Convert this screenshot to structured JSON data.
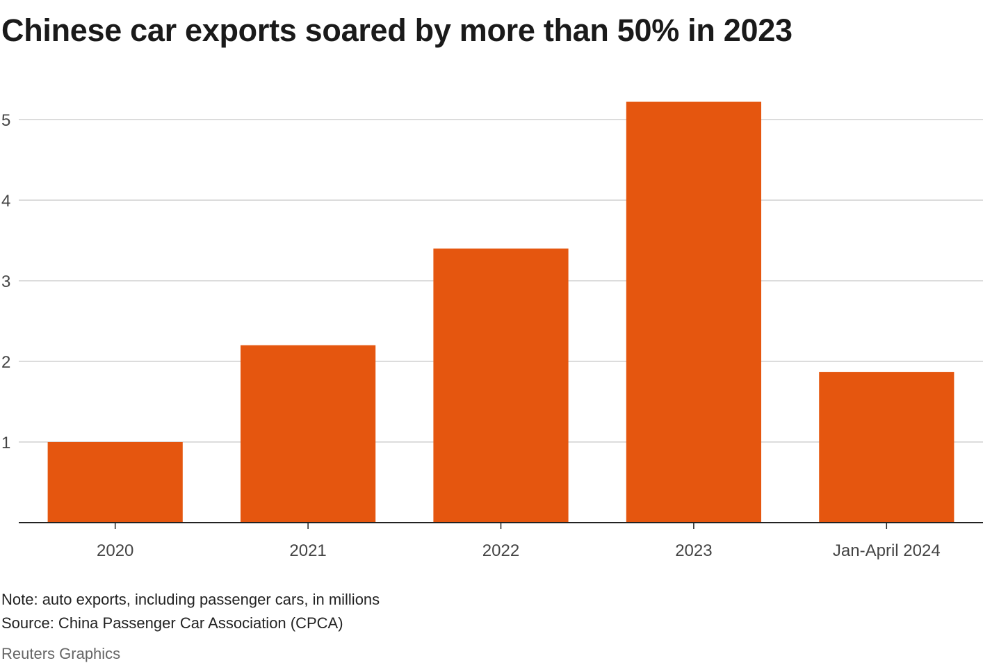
{
  "chart_data": {
    "type": "bar",
    "title": "Chinese car exports soared by more than 50% in 2023",
    "categories": [
      "2020",
      "2021",
      "2022",
      "2023",
      "Jan-April 2024"
    ],
    "values": [
      1.0,
      2.2,
      3.4,
      5.22,
      1.87
    ],
    "xlabel": "",
    "ylabel": "",
    "ylim": [
      0,
      5.5
    ],
    "yticks": [
      1,
      2,
      3,
      4,
      5
    ],
    "grid": true,
    "bar_color": "#E5560F",
    "note": "Note: auto exports, including passenger cars, in millions",
    "source": "Source: China Passenger Car Association (CPCA)",
    "credit": "Reuters Graphics"
  }
}
